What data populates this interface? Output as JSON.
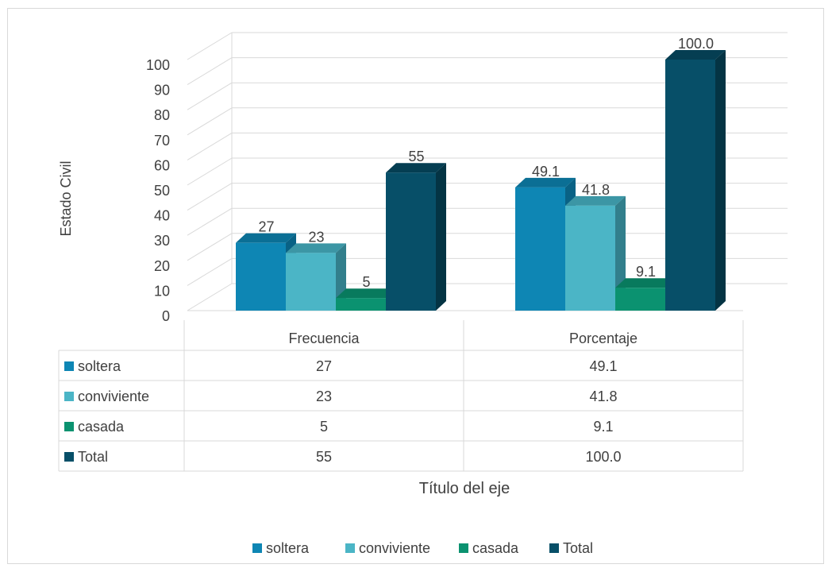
{
  "chart_data": {
    "type": "bar",
    "variant": "3d-clustered-column-with-data-table",
    "categories": [
      "Frecuencia",
      "Porcentaje"
    ],
    "series": [
      {
        "name": "soltera",
        "values": [
          27,
          49.1
        ],
        "labels": [
          "27",
          "49.1"
        ],
        "table": [
          "27",
          "49.1"
        ],
        "color": "#0E86B4",
        "top": "#0B6F95",
        "side": "#096285"
      },
      {
        "name": "conviviente",
        "values": [
          23,
          41.8
        ],
        "labels": [
          "23",
          "41.8"
        ],
        "table": [
          "23",
          "41.8"
        ],
        "color": "#4BB5C6",
        "top": "#3C96A5",
        "side": "#327F8C"
      },
      {
        "name": "casada",
        "values": [
          5,
          9.1
        ],
        "labels": [
          "5",
          "9.1"
        ],
        "table": [
          "5",
          "9.1"
        ],
        "color": "#0B9270",
        "top": "#087A5D",
        "side": "#066650"
      },
      {
        "name": "Total",
        "values": [
          55,
          100.0
        ],
        "labels": [
          "55",
          "100.0"
        ],
        "table": [
          "55",
          "100.0"
        ],
        "color": "#074F68",
        "top": "#053E52",
        "side": "#043444"
      }
    ],
    "yticks": [
      "0",
      "10",
      "20",
      "30",
      "40",
      "50",
      "60",
      "70",
      "80",
      "90",
      "100"
    ],
    "ylim": [
      0,
      100
    ],
    "ylabel": "Estado Civil",
    "xlabel": "Título del eje",
    "legend_position": "bottom",
    "grid": true
  }
}
